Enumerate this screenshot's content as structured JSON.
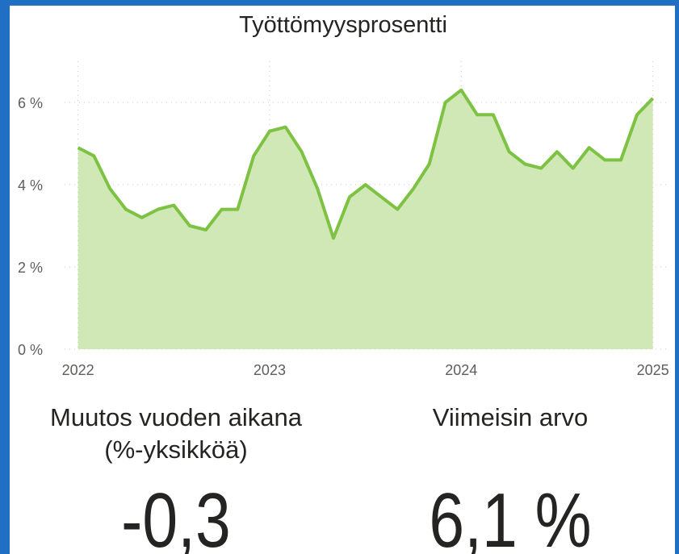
{
  "chart_data": {
    "type": "area",
    "title": "Työttömyysprosentti",
    "x": [
      2022,
      2022.083,
      2022.167,
      2022.25,
      2022.333,
      2022.417,
      2022.5,
      2022.583,
      2022.667,
      2022.75,
      2022.833,
      2022.917,
      2023,
      2023.083,
      2023.167,
      2023.25,
      2023.333,
      2023.417,
      2023.5,
      2023.583,
      2023.667,
      2023.75,
      2023.833,
      2023.917,
      2024,
      2024.083,
      2024.167,
      2024.25,
      2024.333,
      2024.417,
      2024.5,
      2024.583,
      2024.667,
      2024.75,
      2024.833,
      2024.917,
      2025
    ],
    "values": [
      4.9,
      4.7,
      3.9,
      3.4,
      3.2,
      3.4,
      3.5,
      3.0,
      2.9,
      3.4,
      3.4,
      4.7,
      5.3,
      5.4,
      4.8,
      3.9,
      2.7,
      3.7,
      4.0,
      3.7,
      3.4,
      3.9,
      4.5,
      6.0,
      6.3,
      5.7,
      5.7,
      4.8,
      4.5,
      4.4,
      4.8,
      4.4,
      4.9,
      4.6,
      4.6,
      5.7,
      6.1
    ],
    "color": "#7dc243",
    "fill": "#cfe8b5",
    "xlim": [
      2021.93,
      2025.09
    ],
    "xticks": [
      2022,
      2023,
      2024,
      2025
    ],
    "ylim": [
      0,
      7
    ],
    "yticks": [
      {
        "value": 0,
        "label": "0 %"
      },
      {
        "value": 2,
        "label": "2 %"
      },
      {
        "value": 4,
        "label": "4 %"
      },
      {
        "value": 6,
        "label": "6 %"
      }
    ],
    "grid": true
  },
  "kpis": [
    {
      "label": [
        "Muutos vuoden aikana",
        "(%-yksikköä)"
      ],
      "value": "-0,3"
    },
    {
      "label": [
        "Viimeisin arvo"
      ],
      "value": "6,1 %"
    }
  ]
}
